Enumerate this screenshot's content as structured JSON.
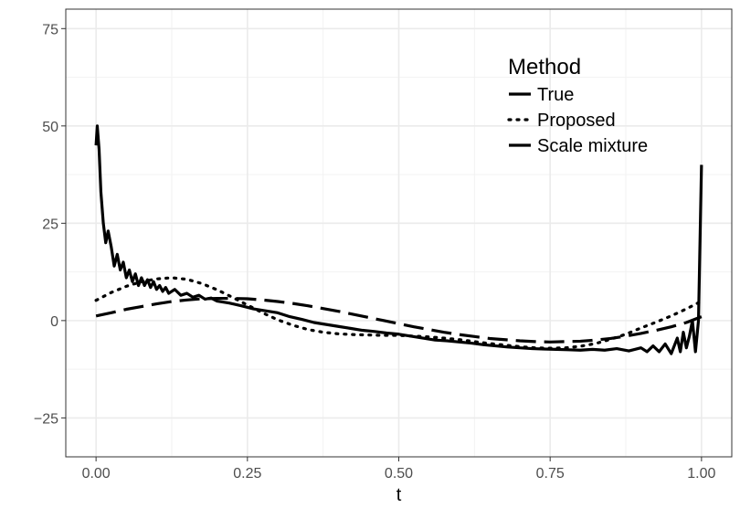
{
  "chart_data": {
    "type": "line",
    "title": "",
    "xlabel": "t",
    "ylabel": "",
    "xlim": [
      -0.05,
      1.05
    ],
    "ylim": [
      -35,
      80
    ],
    "x_ticks": [
      0.0,
      0.25,
      0.5,
      0.75,
      1.0
    ],
    "x_tick_labels": [
      "0.00",
      "0.25",
      "0.50",
      "0.75",
      "1.00"
    ],
    "y_ticks": [
      -25,
      0,
      25,
      50,
      75
    ],
    "y_tick_labels": [
      "−25",
      "0",
      "25",
      "50",
      "75"
    ],
    "grid": true,
    "legend": {
      "title": "Method",
      "position": "top-right"
    },
    "series": [
      {
        "name": "True",
        "linestyle": "solid",
        "color": "#000000",
        "x": [
          0.0,
          0.002,
          0.005,
          0.008,
          0.012,
          0.016,
          0.02,
          0.025,
          0.03,
          0.035,
          0.04,
          0.045,
          0.05,
          0.055,
          0.06,
          0.065,
          0.07,
          0.075,
          0.08,
          0.085,
          0.09,
          0.095,
          0.1,
          0.105,
          0.11,
          0.115,
          0.12,
          0.13,
          0.14,
          0.15,
          0.16,
          0.17,
          0.18,
          0.19,
          0.2,
          0.22,
          0.24,
          0.26,
          0.28,
          0.3,
          0.32,
          0.34,
          0.36,
          0.38,
          0.4,
          0.42,
          0.44,
          0.46,
          0.48,
          0.5,
          0.52,
          0.54,
          0.56,
          0.58,
          0.6,
          0.62,
          0.64,
          0.66,
          0.68,
          0.7,
          0.72,
          0.74,
          0.76,
          0.78,
          0.8,
          0.82,
          0.84,
          0.86,
          0.88,
          0.9,
          0.91,
          0.92,
          0.93,
          0.94,
          0.95,
          0.96,
          0.965,
          0.97,
          0.975,
          0.98,
          0.985,
          0.99,
          0.995,
          1.0
        ],
        "values": [
          45,
          50,
          44,
          33,
          25,
          20,
          23,
          19,
          14,
          17,
          13,
          15,
          11,
          13,
          10,
          12,
          9,
          11,
          9,
          10.5,
          8.5,
          10,
          8,
          9,
          7.5,
          8.5,
          7,
          8,
          6.5,
          7,
          6,
          6.5,
          5.5,
          5.8,
          5,
          4.5,
          3.8,
          3,
          2.5,
          2,
          1,
          0.3,
          -0.5,
          -1,
          -1.5,
          -2,
          -2.5,
          -2.8,
          -3.2,
          -3.5,
          -4,
          -4.5,
          -5,
          -5.2,
          -5.5,
          -5.8,
          -6.2,
          -6.5,
          -6.8,
          -7,
          -7.2,
          -7.3,
          -7.4,
          -7.5,
          -7.6,
          -7.4,
          -7.6,
          -7.2,
          -7.8,
          -7,
          -8,
          -6.5,
          -8,
          -6,
          -8.5,
          -4.5,
          -8,
          -3,
          -7,
          -4,
          0,
          -8,
          0,
          40
        ]
      },
      {
        "name": "Proposed",
        "linestyle": "dotted",
        "color": "#000000",
        "x": [
          0.0,
          0.025,
          0.05,
          0.075,
          0.1,
          0.125,
          0.15,
          0.175,
          0.2,
          0.225,
          0.25,
          0.275,
          0.3,
          0.325,
          0.35,
          0.375,
          0.4,
          0.425,
          0.45,
          0.475,
          0.5,
          0.525,
          0.55,
          0.575,
          0.6,
          0.625,
          0.65,
          0.675,
          0.7,
          0.725,
          0.75,
          0.775,
          0.8,
          0.825,
          0.85,
          0.875,
          0.9,
          0.925,
          0.95,
          0.975,
          1.0
        ],
        "values": [
          5.2,
          7.2,
          8.8,
          10.0,
          10.7,
          11.0,
          10.6,
          9.5,
          7.9,
          6.0,
          4.0,
          2.0,
          0.2,
          -1.2,
          -2.3,
          -3.0,
          -3.4,
          -3.6,
          -3.7,
          -3.8,
          -3.8,
          -4.0,
          -4.2,
          -4.5,
          -4.9,
          -5.4,
          -5.9,
          -6.3,
          -6.7,
          -7.0,
          -7.1,
          -7.0,
          -6.6,
          -5.9,
          -4.8,
          -3.5,
          -1.9,
          -0.4,
          1.2,
          3.0,
          5.0
        ]
      },
      {
        "name": "Scale mixture",
        "linestyle": "dashed",
        "color": "#000000",
        "x": [
          0.0,
          0.025,
          0.05,
          0.075,
          0.1,
          0.125,
          0.15,
          0.175,
          0.2,
          0.225,
          0.25,
          0.275,
          0.3,
          0.325,
          0.35,
          0.375,
          0.4,
          0.425,
          0.45,
          0.475,
          0.5,
          0.525,
          0.55,
          0.575,
          0.6,
          0.625,
          0.65,
          0.675,
          0.7,
          0.725,
          0.75,
          0.775,
          0.8,
          0.825,
          0.85,
          0.875,
          0.9,
          0.925,
          0.95,
          0.975,
          1.0
        ],
        "values": [
          1.2,
          2.0,
          2.9,
          3.6,
          4.3,
          4.9,
          5.3,
          5.6,
          5.7,
          5.7,
          5.6,
          5.3,
          4.9,
          4.4,
          3.8,
          3.1,
          2.4,
          1.6,
          0.8,
          0.0,
          -0.8,
          -1.6,
          -2.3,
          -3.0,
          -3.6,
          -4.1,
          -4.6,
          -4.9,
          -5.2,
          -5.4,
          -5.5,
          -5.4,
          -5.3,
          -5.0,
          -4.6,
          -4.0,
          -3.3,
          -2.5,
          -1.6,
          -0.5,
          1.0
        ]
      }
    ]
  }
}
